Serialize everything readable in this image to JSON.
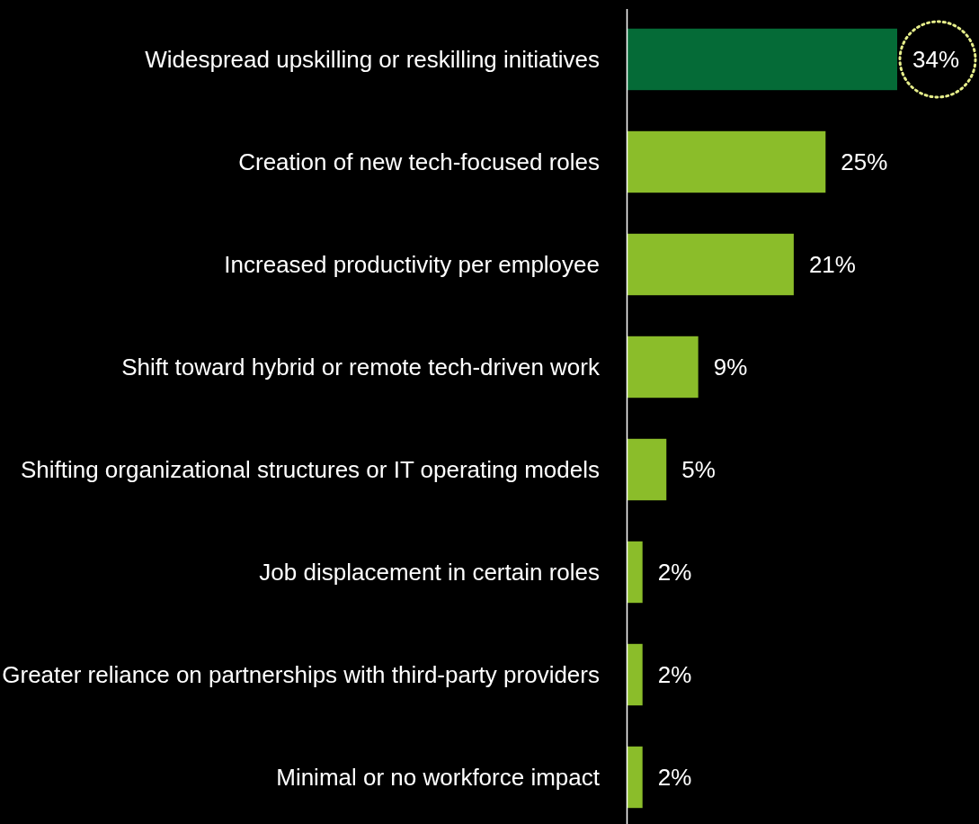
{
  "chart_data": {
    "type": "bar",
    "orientation": "horizontal",
    "categories": [
      "Widespread upskilling or reskilling initiatives",
      "Creation of new tech-focused roles",
      "Increased productivity per employee",
      "Shift toward hybrid or remote tech-driven work",
      "Shifting organizational structures or IT operating models",
      "Job displacement in certain roles",
      "Greater reliance on partnerships with third-party providers",
      "Minimal or no workforce impact"
    ],
    "values": [
      34,
      25,
      21,
      9,
      5,
      2,
      2,
      2
    ],
    "colors": [
      "#056b37",
      "#8bbd2a",
      "#8bbd2a",
      "#8bbd2a",
      "#8bbd2a",
      "#8bbd2a",
      "#8bbd2a",
      "#8bbd2a"
    ],
    "value_labels": [
      "34%",
      "25%",
      "21%",
      "9%",
      "5%",
      "2%",
      "2%",
      "2%"
    ]
  }
}
